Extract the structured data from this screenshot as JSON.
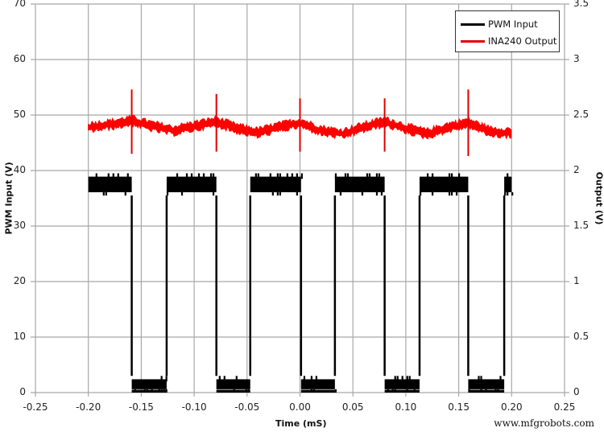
{
  "chart_data": {
    "type": "line",
    "title": "",
    "xlabel": "Time (mS)",
    "ylabel": "PWM Input (V)",
    "ylabel_right": "Output (V)",
    "xlim": [
      -0.25,
      0.25
    ],
    "ylim": [
      0,
      70
    ],
    "ylim_right": [
      0,
      3.5
    ],
    "x_ticks": [
      "-0.25",
      "-0.20",
      "-0.15",
      "-0.10",
      "-0.05",
      "0.00",
      "0.05",
      "0.10",
      "0.15",
      "0.20",
      "0.25"
    ],
    "y_ticks_left": [
      "0",
      "10",
      "20",
      "30",
      "40",
      "50",
      "60",
      "70"
    ],
    "y_ticks_right": [
      "0",
      "0.5",
      "1",
      "1.5",
      "2",
      "2.5",
      "3",
      "3.5"
    ],
    "grid": true,
    "legend_position": "upper right",
    "series": [
      {
        "name": "PWM Input",
        "axis": "left",
        "color": "#000000",
        "description": "Noisy square wave ~6.1 kHz (period ~0.08 mS), high ~37.5 V (band 35.5–39.5), low ~1.5 V (band 0–3)",
        "high_level": 37.5,
        "high_band": [
          35.5,
          39.5
        ],
        "low_level": 1.5,
        "low_band": [
          0,
          3
        ],
        "segments": [
          {
            "state": "high",
            "x_start": -0.2,
            "x_end": -0.159
          },
          {
            "state": "low",
            "x_start": -0.159,
            "x_end": -0.126
          },
          {
            "state": "high",
            "x_start": -0.126,
            "x_end": -0.079
          },
          {
            "state": "low",
            "x_start": -0.079,
            "x_end": -0.047
          },
          {
            "state": "high",
            "x_start": -0.047,
            "x_end": 0.001
          },
          {
            "state": "low",
            "x_start": 0.001,
            "x_end": 0.033
          },
          {
            "state": "high",
            "x_start": 0.033,
            "x_end": 0.08
          },
          {
            "state": "low",
            "x_start": 0.08,
            "x_end": 0.113
          },
          {
            "state": "high",
            "x_start": 0.113,
            "x_end": 0.159
          },
          {
            "state": "low",
            "x_start": 0.159,
            "x_end": 0.193
          },
          {
            "state": "high",
            "x_start": 0.193,
            "x_end": 0.2
          }
        ]
      },
      {
        "name": "INA240 Output",
        "axis": "right",
        "color": "#ff0000",
        "description": "Noisy output ~2.4 V with triangular ripple and spikes at each PWM falling edge",
        "x": [
          -0.2,
          -0.175,
          -0.159,
          -0.14,
          -0.12,
          -0.1,
          -0.079,
          -0.06,
          -0.04,
          -0.02,
          0.0,
          0.02,
          0.04,
          0.06,
          0.08,
          0.1,
          0.12,
          0.14,
          0.159,
          0.18,
          0.2
        ],
        "y": [
          2.39,
          2.42,
          2.45,
          2.4,
          2.36,
          2.4,
          2.44,
          2.38,
          2.34,
          2.39,
          2.43,
          2.36,
          2.33,
          2.39,
          2.44,
          2.38,
          2.33,
          2.39,
          2.43,
          2.35,
          2.34
        ],
        "band_width_v": 0.07,
        "spikes": [
          {
            "x": -0.159,
            "y_max": 2.73,
            "y_min": 2.15
          },
          {
            "x": -0.079,
            "y_max": 2.69,
            "y_min": 2.17
          },
          {
            "x": 0.0,
            "y_max": 2.65,
            "y_min": 2.17
          },
          {
            "x": 0.08,
            "y_max": 2.65,
            "y_min": 2.17
          },
          {
            "x": 0.159,
            "y_max": 2.73,
            "y_min": 2.13
          }
        ]
      }
    ]
  },
  "legend": {
    "items": [
      {
        "label": "PWM Input",
        "color": "#000000"
      },
      {
        "label": "INA240 Output",
        "color": "#ff0000"
      }
    ]
  },
  "watermark": "www.mfgrobots.com"
}
